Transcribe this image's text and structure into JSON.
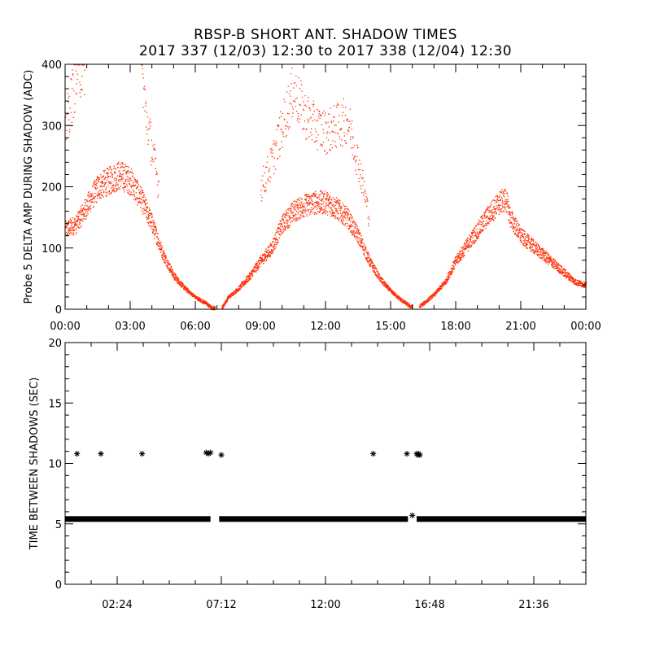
{
  "title": "RBSP-B SHORT ANT. SHADOW TIMES",
  "subtitle": "2017 337 (12/03) 12:30 to 2017 338 (12/04) 12:30",
  "colors": {
    "amp_series": "#ff2a00",
    "gap_series": "#000000",
    "axes": "#000000",
    "background": "#ffffff"
  },
  "chart_data": [
    {
      "type": "scatter",
      "ylabel": "Probe 5 DELTA AMP DURING SHADOW (ADC)",
      "xlabel": "",
      "xlim": [
        0,
        24
      ],
      "ylim": [
        0,
        400
      ],
      "x_ticks": [
        "00:00",
        "03:00",
        "06:00",
        "09:00",
        "12:00",
        "15:00",
        "18:00",
        "21:00",
        "00:00"
      ],
      "y_ticks": [
        "0",
        "100",
        "200",
        "300",
        "400"
      ],
      "series": [
        {
          "color": "#ff2a00",
          "marker": "dot",
          "x_hours": [
            0.0,
            0.5,
            1.0,
            1.5,
            2.0,
            2.5,
            3.0,
            3.5,
            4.0,
            4.5,
            5.0,
            5.5,
            6.0,
            6.5,
            6.75,
            7.25,
            7.5,
            8.0,
            8.5,
            9.0,
            9.5,
            10.0,
            10.5,
            11.0,
            11.5,
            12.0,
            12.5,
            13.0,
            13.5,
            14.0,
            14.5,
            15.0,
            15.5,
            15.9,
            16.3,
            16.5,
            17.0,
            17.5,
            18.0,
            18.5,
            19.0,
            19.5,
            20.0,
            20.3,
            20.5,
            21.0,
            21.5,
            22.0,
            22.5,
            23.0,
            23.5,
            24.0
          ],
          "y_values": [
            130,
            140,
            170,
            200,
            210,
            220,
            210,
            180,
            140,
            90,
            55,
            35,
            20,
            10,
            2,
            5,
            20,
            35,
            55,
            80,
            100,
            140,
            160,
            170,
            175,
            175,
            165,
            150,
            120,
            80,
            50,
            30,
            15,
            5,
            5,
            10,
            25,
            45,
            80,
            105,
            130,
            155,
            175,
            180,
            150,
            120,
            105,
            90,
            75,
            60,
            45,
            40
          ],
          "upper_branch_x_hours": [
            0.0,
            0.3,
            0.6,
            0.9,
            3.5,
            3.7,
            4.0,
            4.3,
            9.0,
            9.5,
            10.0,
            10.5,
            11.0,
            11.5,
            12.0,
            12.5,
            13.0,
            13.5,
            14.0
          ],
          "upper_branch_y_values": [
            300,
            350,
            390,
            400,
            400,
            320,
            260,
            200,
            200,
            240,
            300,
            360,
            320,
            300,
            290,
            300,
            310,
            240,
            150
          ]
        }
      ]
    },
    {
      "type": "scatter",
      "ylabel": "TIME BETWEEN SHADOWS (SEC)",
      "xlabel": "",
      "xlim": [
        0,
        24
      ],
      "ylim": [
        0,
        20
      ],
      "x_ticks": [
        "02:24",
        "07:12",
        "12:00",
        "16:48",
        "21:36"
      ],
      "y_ticks": [
        "0",
        "5",
        "10",
        "15",
        "20"
      ],
      "series": [
        {
          "color": "#000000",
          "marker": "asterisk",
          "baseline_value": 5.4,
          "baseline_segments_hours": [
            [
              0.0,
              6.7
            ],
            [
              7.1,
              15.8
            ],
            [
              16.2,
              24.0
            ]
          ],
          "x_hours": [
            0.55,
            1.65,
            3.55,
            6.5,
            6.6,
            6.7,
            7.2,
            14.2,
            15.75,
            16.0,
            16.2,
            16.25,
            16.3,
            16.35
          ],
          "y_values": [
            10.8,
            10.8,
            10.8,
            10.9,
            10.8,
            10.9,
            10.7,
            10.8,
            10.8,
            5.7,
            10.8,
            10.7,
            10.8,
            10.7
          ]
        }
      ]
    }
  ]
}
